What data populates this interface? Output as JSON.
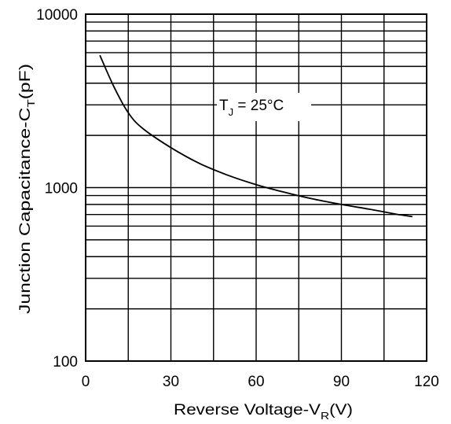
{
  "chart_data": {
    "type": "line",
    "xlabel": "Reverse Voltage-V",
    "xlabel_sub": "R",
    "xlabel_unit": "(V)",
    "ylabel": "Junction Capacitance-C",
    "ylabel_sub": "T",
    "ylabel_unit": "(pF)",
    "xlim": [
      0,
      120
    ],
    "ylim": [
      100,
      10000
    ],
    "yscale": "log",
    "grid": true,
    "x_ticks": [
      0,
      30,
      60,
      90,
      120
    ],
    "x_tick_labels": [
      "0",
      "30",
      "60",
      "90",
      "120"
    ],
    "y_ticks": [
      100,
      1000,
      10000
    ],
    "y_tick_labels": [
      "100",
      "1000",
      "10000"
    ],
    "annotation": {
      "text": "T",
      "sub": "J",
      "rest": " = 25°C"
    },
    "series": [
      {
        "x": [
          5,
          10,
          15,
          20,
          30,
          40,
          50,
          60,
          70,
          80,
          90,
          100,
          110,
          115
        ],
        "y": [
          5800,
          3800,
          2700,
          2200,
          1700,
          1380,
          1180,
          1040,
          940,
          860,
          800,
          750,
          700,
          680
        ]
      }
    ]
  }
}
